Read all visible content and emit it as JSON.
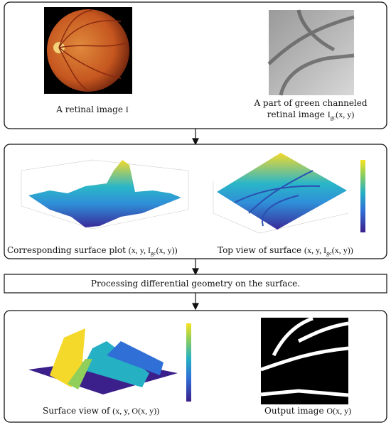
{
  "box1": {
    "left_caption": {
      "text": "A retinal image",
      "math": "I"
    },
    "right_caption": {
      "line1": "A part of green channeled",
      "text": "retinal image",
      "math": "I",
      "sub": "gc",
      "args": "(x, y)"
    }
  },
  "box2": {
    "left_caption": {
      "text": "Corresponding surface plot",
      "math": "(x, y, I",
      "sub": "gc",
      "args": "(x, y))"
    },
    "right_caption": {
      "text": "Top view of surface",
      "math": "(x, y, I",
      "sub": "gc",
      "args": "(x, y))"
    }
  },
  "step": {
    "text": "Processing differential geometry on the surface."
  },
  "box4": {
    "left_caption": {
      "text": "Surface view of",
      "math": "(x, y, O(x, y))"
    },
    "right_caption": {
      "text": "Output image",
      "math": "O(x, y)"
    }
  }
}
